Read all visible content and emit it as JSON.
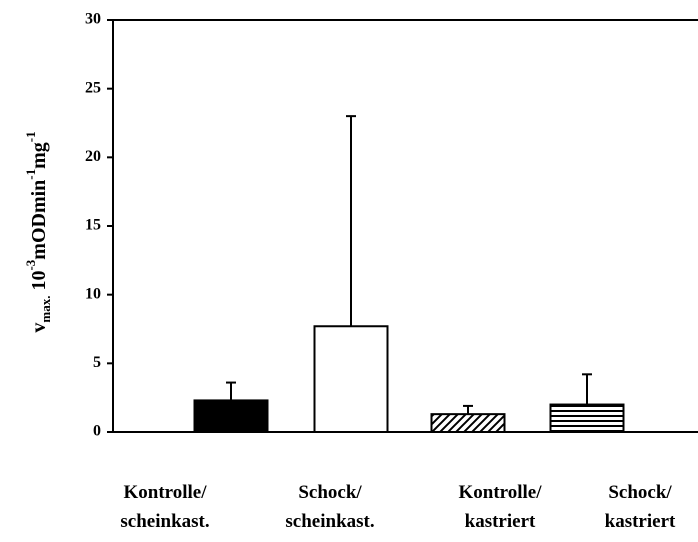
{
  "chart_data": {
    "type": "bar",
    "ylabel": [
      "v",
      "max.",
      " 10",
      "-3",
      "mODmin",
      "-1",
      "mg",
      "-1"
    ],
    "categories": [
      [
        "Kontrolle/",
        "scheinkast."
      ],
      [
        "Schock/",
        "scheinkast."
      ],
      [
        "Kontrolle/",
        "kastriert"
      ],
      [
        "Schock/",
        "kastriert"
      ]
    ],
    "values": [
      2.3,
      7.7,
      1.3,
      2.0
    ],
    "errors": [
      1.3,
      15.3,
      0.6,
      2.2
    ],
    "patterns": [
      "solid",
      "none",
      "diagonal",
      "horizontal"
    ],
    "color": "#000000",
    "ylim": [
      0,
      30
    ],
    "yticks": [
      0,
      5,
      10,
      15,
      20,
      25,
      30
    ]
  }
}
